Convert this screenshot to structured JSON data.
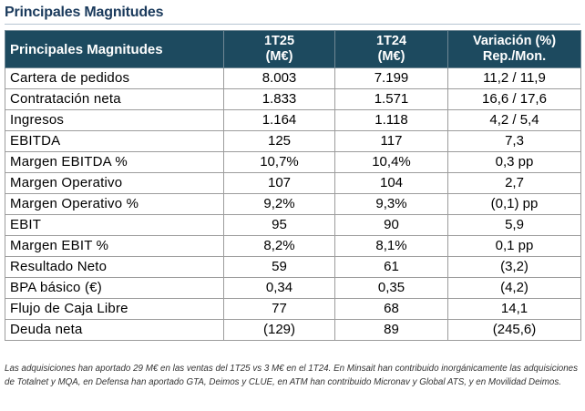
{
  "page": {
    "title": "Principales Magnitudes"
  },
  "table": {
    "header": {
      "col0": "Principales Magnitudes",
      "col1": [
        "1T25",
        "(M€)"
      ],
      "col2": [
        "1T24",
        "(M€)"
      ],
      "col3": [
        "Variación (%)",
        "Rep./Mon."
      ]
    },
    "rows": [
      {
        "label": "Cartera de pedidos",
        "v1": "8.003",
        "v2": "7.199",
        "var": "11,2 / 11,9"
      },
      {
        "label": "Contratación neta",
        "v1": "1.833",
        "v2": "1.571",
        "var": "16,6 / 17,6"
      },
      {
        "label": "Ingresos",
        "v1": "1.164",
        "v2": "1.118",
        "var": "4,2 / 5,4"
      },
      {
        "label": "EBITDA",
        "v1": "125",
        "v2": "117",
        "var": "7,3"
      },
      {
        "label": "Margen EBITDA %",
        "v1": "10,7%",
        "v2": "10,4%",
        "var": "0,3 pp"
      },
      {
        "label": "Margen Operativo",
        "v1": "107",
        "v2": "104",
        "var": "2,7"
      },
      {
        "label": "Margen Operativo %",
        "v1": "9,2%",
        "v2": "9,3%",
        "var": "(0,1) pp"
      },
      {
        "label": "EBIT",
        "v1": "95",
        "v2": "90",
        "var": "5,9"
      },
      {
        "label": "Margen EBIT %",
        "v1": "8,2%",
        "v2": "8,1%",
        "var": "0,1 pp"
      },
      {
        "label": "Resultado Neto",
        "v1": "59",
        "v2": "61",
        "var": "(3,2)"
      },
      {
        "label": "BPA básico (€)",
        "v1": "0,34",
        "v2": "0,35",
        "var": "(4,2)"
      },
      {
        "label": "Flujo de Caja Libre",
        "v1": "77",
        "v2": "68",
        "var": "14,1"
      },
      {
        "label": "Deuda neta",
        "v1": "(129)",
        "v2": "89",
        "var": "(245,6)"
      }
    ]
  },
  "footnote": {
    "text": "Las adquisiciones han aportado 29 M€ en las ventas del 1T25 vs 3 M€ en el 1T24. En Minsait han contribuido inorgánicamente las adquisiciones de Totalnet y MQA, en Defensa han aportado GTA, Deimos y CLUE, en ATM han contribuido Micronav y Global ATS, y en Movilidad Deimos."
  },
  "colors": {
    "header_bg": "#1d4a5f",
    "title_color": "#1a3a5c"
  }
}
